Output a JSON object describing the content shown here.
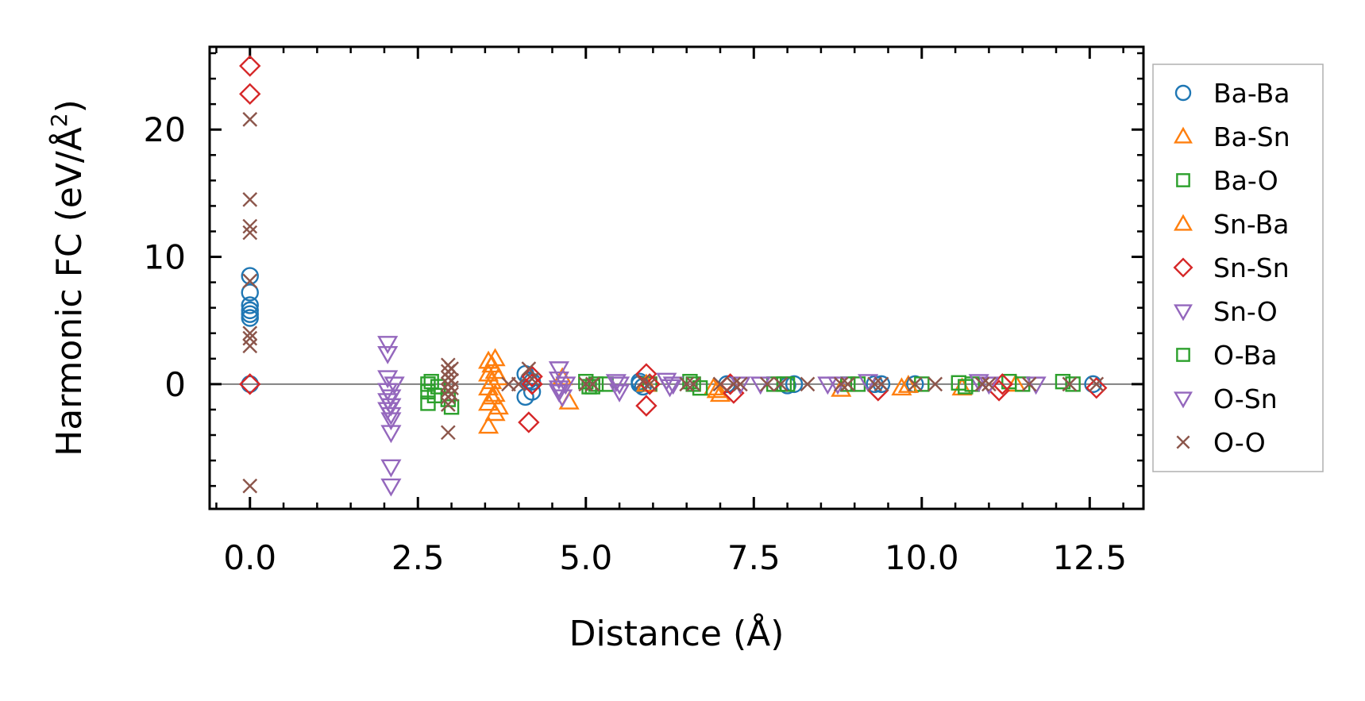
{
  "chart_data": {
    "type": "scatter",
    "title": "",
    "xlabel": "Distance (Å)",
    "ylabel_main": "Harmonic FC (eV/Å",
    "ylabel_sup": "2",
    "ylabel_close": ")",
    "xlim": [
      -0.6,
      13.3
    ],
    "ylim": [
      -9.8,
      26.5
    ],
    "xticks": [
      0.0,
      2.5,
      5.0,
      7.5,
      10.0,
      12.5
    ],
    "xtick_labels": [
      "0.0",
      "2.5",
      "5.0",
      "7.5",
      "10.0",
      "12.5"
    ],
    "yticks": [
      0,
      10,
      20
    ],
    "ytick_labels": [
      "0",
      "10",
      "20"
    ],
    "zero_line": true,
    "grid": false,
    "legend_position": "outside-right",
    "series": [
      {
        "name": "Ba-Ba",
        "marker": "circle",
        "color": "#1f77b4",
        "points": [
          [
            0,
            8.5
          ],
          [
            0,
            7.2
          ],
          [
            0,
            6.2
          ],
          [
            0,
            5.8
          ],
          [
            0,
            5.5
          ],
          [
            0,
            5.2
          ],
          [
            0,
            0
          ],
          [
            4.1,
            0.8
          ],
          [
            4.1,
            -1.0
          ],
          [
            4.15,
            0.3
          ],
          [
            4.2,
            -0.6
          ],
          [
            4.2,
            0.2
          ],
          [
            5.8,
            0.2
          ],
          [
            5.8,
            0
          ],
          [
            5.85,
            -0.2
          ],
          [
            7.1,
            0
          ],
          [
            8.0,
            -0.1
          ],
          [
            8.1,
            0
          ],
          [
            9.3,
            0
          ],
          [
            9.4,
            0
          ],
          [
            9.9,
            0
          ],
          [
            12.55,
            0
          ]
        ]
      },
      {
        "name": "Ba-Sn",
        "marker": "triangle-up",
        "color": "#ff7f0e",
        "points": [
          [
            3.55,
            1.8
          ],
          [
            3.55,
            0.8
          ],
          [
            3.55,
            -0.3
          ],
          [
            3.55,
            -1.5
          ],
          [
            3.55,
            -3.3
          ],
          [
            3.65,
            2.0
          ],
          [
            3.65,
            1.0
          ],
          [
            3.65,
            -0.8
          ],
          [
            3.65,
            -2.3
          ],
          [
            4.65,
            0.5
          ],
          [
            4.75,
            -1.4
          ],
          [
            6.9,
            -0.3
          ],
          [
            7.0,
            -0.8
          ],
          [
            8.8,
            -0.4
          ],
          [
            9.7,
            -0.3
          ],
          [
            10.6,
            -0.3
          ],
          [
            11.4,
            0
          ]
        ]
      },
      {
        "name": "Ba-O",
        "marker": "square",
        "color": "#2ca02c",
        "points": [
          [
            2.65,
            0
          ],
          [
            2.65,
            -0.6
          ],
          [
            2.65,
            -1.5
          ],
          [
            2.8,
            -0.2
          ],
          [
            2.95,
            -1.2
          ],
          [
            3.0,
            -1.8
          ],
          [
            5.0,
            0.2
          ],
          [
            5.05,
            -0.2
          ],
          [
            5.15,
            0
          ],
          [
            5.3,
            0
          ],
          [
            5.95,
            0
          ],
          [
            6.6,
            0
          ],
          [
            6.7,
            -0.3
          ],
          [
            7.8,
            0
          ],
          [
            8.0,
            0
          ],
          [
            8.9,
            0
          ],
          [
            9.05,
            0
          ],
          [
            10.0,
            0
          ],
          [
            10.55,
            0.1
          ],
          [
            10.75,
            0
          ],
          [
            11.3,
            0.2
          ],
          [
            11.5,
            0
          ],
          [
            12.1,
            0.2
          ],
          [
            12.25,
            0
          ]
        ]
      },
      {
        "name": "Sn-Ba",
        "marker": "triangle-up",
        "color": "#ff7f0e",
        "points": [
          [
            3.6,
            1.5
          ],
          [
            3.6,
            0.2
          ],
          [
            3.6,
            -1.0
          ],
          [
            3.7,
            -1.8
          ],
          [
            3.7,
            0.5
          ],
          [
            5.9,
            0
          ],
          [
            6.95,
            -0.5
          ],
          [
            9.8,
            -0.1
          ]
        ]
      },
      {
        "name": "Sn-Sn",
        "marker": "diamond",
        "color": "#d62728",
        "points": [
          [
            0,
            25.0
          ],
          [
            0,
            22.8
          ],
          [
            0,
            0
          ],
          [
            4.15,
            -3.0
          ],
          [
            4.2,
            0.6
          ],
          [
            4.2,
            0
          ],
          [
            5.9,
            0.8
          ],
          [
            5.9,
            -1.7
          ],
          [
            5.95,
            0
          ],
          [
            7.15,
            0
          ],
          [
            7.2,
            -0.7
          ],
          [
            9.35,
            -0.5
          ],
          [
            11.15,
            -0.5
          ],
          [
            11.2,
            0
          ],
          [
            12.6,
            -0.3
          ]
        ]
      },
      {
        "name": "Sn-O",
        "marker": "triangle-down",
        "color": "#9467bd",
        "points": [
          [
            2.05,
            3.2
          ],
          [
            2.05,
            2.4
          ],
          [
            2.05,
            0.5
          ],
          [
            2.05,
            -0.5
          ],
          [
            2.05,
            -1.3
          ],
          [
            2.05,
            -2.0
          ],
          [
            2.1,
            -2.8
          ],
          [
            2.1,
            -3.8
          ],
          [
            2.1,
            -6.5
          ],
          [
            2.1,
            -8.0
          ],
          [
            2.15,
            0
          ],
          [
            4.6,
            1.2
          ],
          [
            4.6,
            0.4
          ],
          [
            4.6,
            -0.6
          ],
          [
            4.65,
            -1.0
          ],
          [
            4.7,
            0
          ],
          [
            5.5,
            -0.6
          ],
          [
            5.5,
            0
          ],
          [
            6.2,
            0.3
          ],
          [
            6.25,
            -0.2
          ],
          [
            7.6,
            0
          ],
          [
            8.6,
            0
          ],
          [
            9.2,
            0.2
          ],
          [
            10.85,
            0.2
          ],
          [
            11.7,
            0
          ]
        ]
      },
      {
        "name": "O-Ba",
        "marker": "square",
        "color": "#2ca02c",
        "points": [
          [
            2.7,
            0.2
          ],
          [
            2.75,
            -0.9
          ],
          [
            5.1,
            -0.2
          ],
          [
            6.55,
            0.2
          ],
          [
            7.95,
            0
          ],
          [
            10.65,
            -0.2
          ]
        ]
      },
      {
        "name": "O-Sn",
        "marker": "triangle-down",
        "color": "#9467bd",
        "points": [
          [
            2.1,
            -1.0
          ],
          [
            2.1,
            -1.7
          ],
          [
            2.1,
            -2.4
          ],
          [
            4.6,
            -0.3
          ],
          [
            5.45,
            0.2
          ],
          [
            6.3,
            0
          ],
          [
            7.3,
            0
          ],
          [
            8.75,
            0
          ],
          [
            11.0,
            0
          ]
        ]
      },
      {
        "name": "O-O",
        "marker": "x",
        "color": "#8c564b",
        "points": [
          [
            0,
            20.8
          ],
          [
            0,
            14.5
          ],
          [
            0,
            12.4
          ],
          [
            0,
            11.9
          ],
          [
            0,
            8.1
          ],
          [
            0,
            4.0
          ],
          [
            0,
            3.6
          ],
          [
            0,
            3.0
          ],
          [
            0,
            -8.0
          ],
          [
            2.95,
            1.5
          ],
          [
            2.95,
            1.0
          ],
          [
            2.95,
            0.5
          ],
          [
            2.95,
            0
          ],
          [
            2.95,
            -0.5
          ],
          [
            2.95,
            -1.0
          ],
          [
            2.95,
            -1.6
          ],
          [
            2.95,
            -3.8
          ],
          [
            3.0,
            1.2
          ],
          [
            3.0,
            0.3
          ],
          [
            3.0,
            -0.3
          ],
          [
            3.0,
            -0.8
          ],
          [
            3.85,
            0
          ],
          [
            4.0,
            0
          ],
          [
            4.15,
            1.2
          ],
          [
            4.2,
            0.4
          ],
          [
            5.0,
            0
          ],
          [
            5.1,
            0
          ],
          [
            5.85,
            0.2
          ],
          [
            5.95,
            0
          ],
          [
            6.5,
            0
          ],
          [
            6.6,
            0
          ],
          [
            7.0,
            0
          ],
          [
            7.2,
            0
          ],
          [
            7.3,
            0
          ],
          [
            7.7,
            0
          ],
          [
            7.9,
            0
          ],
          [
            8.3,
            0
          ],
          [
            8.8,
            0
          ],
          [
            8.9,
            0
          ],
          [
            9.3,
            0
          ],
          [
            9.4,
            0
          ],
          [
            9.9,
            0
          ],
          [
            10.2,
            0
          ],
          [
            10.9,
            0
          ],
          [
            11.0,
            0
          ],
          [
            11.6,
            0
          ],
          [
            12.2,
            0
          ],
          [
            12.6,
            0
          ]
        ]
      }
    ]
  }
}
